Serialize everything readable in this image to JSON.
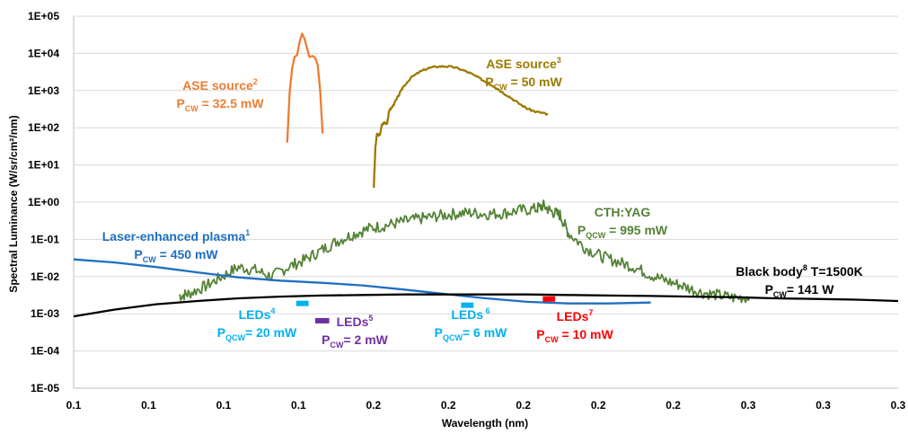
{
  "chart_data": {
    "type": "line",
    "xlabel": "Wavelength (nm)",
    "ylabel": "Spectral Luminance (W/sr/cm²/nm)",
    "y_scale": "log",
    "ylim": [
      1e-05,
      100000
    ],
    "x_tick_labels": [
      "0.1",
      "0.1",
      "0.1",
      "0.1",
      "0.2",
      "0.2",
      "0.2",
      "0.2",
      "0.2",
      "0.3",
      "0.3",
      "0.3"
    ],
    "y_tick_labels": [
      "1E-05",
      "1E-04",
      "1E-03",
      "1E-02",
      "1E-01",
      "1E+00",
      "1E+01",
      "1E+02",
      "1E+03",
      "1E+04",
      "1E+05"
    ],
    "x_range_relative": [
      0,
      1
    ],
    "grid": "horizontal",
    "legend": "none",
    "series": [
      {
        "key": "ase2",
        "color": "#ED7D31",
        "label": {
          "main": "ASE source",
          "sup": "2",
          "line2_main": "P",
          "line2_sub": "CW",
          "line2_value": " = 32.5 mW",
          "color": "#ED7D31"
        },
        "points": [
          [
            0.259,
            40
          ],
          [
            0.262,
            900
          ],
          [
            0.265,
            4000
          ],
          [
            0.268,
            8000
          ],
          [
            0.271,
            9000
          ],
          [
            0.274,
            20000
          ],
          [
            0.277,
            34000
          ],
          [
            0.28,
            25000
          ],
          [
            0.283,
            14000
          ],
          [
            0.286,
            8000
          ],
          [
            0.29,
            8500
          ],
          [
            0.293,
            7500
          ],
          [
            0.296,
            5000
          ],
          [
            0.299,
            1000
          ],
          [
            0.302,
            70
          ]
        ]
      },
      {
        "key": "ase3",
        "color": "#9C7A00",
        "label": {
          "main": "ASE source",
          "sup": "3",
          "line2_main": "P",
          "line2_sub": "CW",
          "line2_value": " = 50 mW",
          "color": "#9C7A00"
        },
        "points": [
          [
            0.364,
            2.5
          ],
          [
            0.366,
            30
          ],
          [
            0.368,
            70
          ],
          [
            0.371,
            60
          ],
          [
            0.374,
            120
          ],
          [
            0.377,
            140
          ],
          [
            0.38,
            130
          ],
          [
            0.383,
            300
          ],
          [
            0.386,
            350
          ],
          [
            0.39,
            500
          ],
          [
            0.395,
            800
          ],
          [
            0.4,
            1300
          ],
          [
            0.41,
            2300
          ],
          [
            0.42,
            3200
          ],
          [
            0.43,
            4000
          ],
          [
            0.44,
            4400
          ],
          [
            0.45,
            4500
          ],
          [
            0.46,
            4300
          ],
          [
            0.47,
            3700
          ],
          [
            0.48,
            3000
          ],
          [
            0.49,
            2300
          ],
          [
            0.5,
            1700
          ],
          [
            0.51,
            1300
          ],
          [
            0.52,
            900
          ],
          [
            0.53,
            650
          ],
          [
            0.54,
            450
          ],
          [
            0.55,
            330
          ],
          [
            0.56,
            270
          ],
          [
            0.57,
            250
          ],
          [
            0.575,
            220
          ]
        ]
      },
      {
        "key": "cthyag",
        "color": "#548235",
        "label": {
          "main": "CTH:YAG",
          "sup": "",
          "line2_main": "P",
          "line2_sub": "QCW",
          "line2_value": " = 995 mW",
          "color": "#548235"
        },
        "points": [
          [
            0.128,
            0.003
          ],
          [
            0.14,
            0.0035
          ],
          [
            0.16,
            0.0055
          ],
          [
            0.18,
            0.01
          ],
          [
            0.2,
            0.018
          ],
          [
            0.22,
            0.015
          ],
          [
            0.24,
            0.01
          ],
          [
            0.26,
            0.018
          ],
          [
            0.28,
            0.028
          ],
          [
            0.3,
            0.05
          ],
          [
            0.32,
            0.09
          ],
          [
            0.34,
            0.14
          ],
          [
            0.36,
            0.2
          ],
          [
            0.38,
            0.24
          ],
          [
            0.4,
            0.3
          ],
          [
            0.42,
            0.36
          ],
          [
            0.44,
            0.42
          ],
          [
            0.46,
            0.48
          ],
          [
            0.48,
            0.52
          ],
          [
            0.5,
            0.48
          ],
          [
            0.52,
            0.5
          ],
          [
            0.54,
            0.6
          ],
          [
            0.56,
            0.65
          ],
          [
            0.57,
            0.8
          ],
          [
            0.58,
            0.55
          ],
          [
            0.59,
            0.45
          ],
          [
            0.6,
            0.15
          ],
          [
            0.62,
            0.06
          ],
          [
            0.64,
            0.035
          ],
          [
            0.66,
            0.025
          ],
          [
            0.68,
            0.018
          ],
          [
            0.7,
            0.011
          ],
          [
            0.72,
            0.0075
          ],
          [
            0.74,
            0.0055
          ],
          [
            0.76,
            0.0038
          ],
          [
            0.78,
            0.0032
          ],
          [
            0.8,
            0.0027
          ],
          [
            0.82,
            0.0028
          ]
        ]
      },
      {
        "key": "plasma",
        "color": "#1F6FC0",
        "label": {
          "main": "Laser-enhanced plasma",
          "sup": "1",
          "line2_main": "P",
          "line2_sub": "CW",
          "line2_value": " = 450 mW",
          "color": "#1F6FC0"
        },
        "points": [
          [
            0,
            0.029
          ],
          [
            0.05,
            0.024
          ],
          [
            0.1,
            0.018
          ],
          [
            0.15,
            0.013
          ],
          [
            0.2,
            0.0095
          ],
          [
            0.25,
            0.0078
          ],
          [
            0.3,
            0.0068
          ],
          [
            0.35,
            0.0058
          ],
          [
            0.4,
            0.0045
          ],
          [
            0.45,
            0.0034
          ],
          [
            0.5,
            0.0026
          ],
          [
            0.55,
            0.0021
          ],
          [
            0.6,
            0.0019
          ],
          [
            0.65,
            0.0019
          ],
          [
            0.7,
            0.002
          ]
        ]
      },
      {
        "key": "blackbody",
        "color": "#000000",
        "label": {
          "main": "Black body",
          "sup": "8",
          "main2": " T=1500K",
          "line2_main": "P",
          "line2_sub": "CW",
          "line2_value": "= 141 W",
          "color": "#000000"
        },
        "points": [
          [
            0,
            0.00085
          ],
          [
            0.05,
            0.0013
          ],
          [
            0.1,
            0.0018
          ],
          [
            0.15,
            0.0022
          ],
          [
            0.2,
            0.0026
          ],
          [
            0.25,
            0.0029
          ],
          [
            0.3,
            0.0031
          ],
          [
            0.35,
            0.0032
          ],
          [
            0.4,
            0.0033
          ],
          [
            0.45,
            0.0033
          ],
          [
            0.5,
            0.0033
          ],
          [
            0.55,
            0.0033
          ],
          [
            0.6,
            0.0032
          ],
          [
            0.65,
            0.0031
          ],
          [
            0.7,
            0.003
          ],
          [
            0.75,
            0.0029
          ],
          [
            0.8,
            0.0028
          ],
          [
            0.85,
            0.0026
          ],
          [
            0.9,
            0.0025
          ],
          [
            0.95,
            0.0024
          ],
          [
            1.0,
            0.0022
          ]
        ]
      }
    ],
    "markers": [
      {
        "key": "leds4",
        "color": "#00B0F0",
        "x": [
          0.27,
          0.285
        ],
        "y": 0.0019,
        "label": {
          "main": "LEDs",
          "sup": "4",
          "line2_main": "P",
          "line2_sub": "QCW",
          "line2_value": "= 20 mW",
          "color": "#00B0F0"
        }
      },
      {
        "key": "leds5",
        "color": "#7030A0",
        "x": [
          0.293,
          0.31
        ],
        "y": 0.00065,
        "label": {
          "main": "LEDs",
          "sup": "5",
          "line2_main": "P",
          "line2_sub": "CW",
          "line2_value": "= 2 mW",
          "color": "#7030A0"
        }
      },
      {
        "key": "leds6",
        "color": "#00B0F0",
        "x": [
          0.47,
          0.485
        ],
        "y": 0.0017,
        "label": {
          "main": "LEDs",
          "sup": " 6",
          "line2_main": "P",
          "line2_sub": "QCW",
          "line2_value": "= 6 mW",
          "color": "#00B0F0"
        }
      },
      {
        "key": "leds7",
        "color": "#FF0000",
        "x": [
          0.569,
          0.584
        ],
        "y": 0.0025,
        "label": {
          "main": "LEDs",
          "sup": "7",
          "line2_main": "P",
          "line2_sub": "CW",
          "line2_value": " = 10 mW",
          "color": "#FF0000"
        }
      }
    ]
  }
}
